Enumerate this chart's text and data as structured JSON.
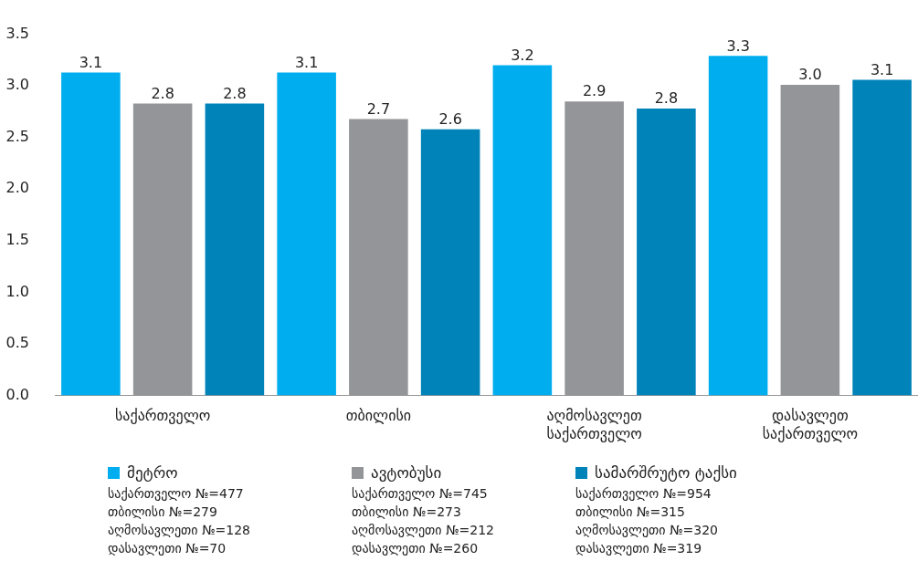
{
  "chart_data": {
    "type": "bar",
    "categories": [
      "საქართველო",
      "თბილისი",
      "აღმოსავლეთ საქართველო",
      "დასავლეთ საქართველო"
    ],
    "series": [
      {
        "name": "მეტრო",
        "color": "#00aeef",
        "values": [
          3.13,
          3.13,
          3.2,
          3.29
        ],
        "value_labels": [
          "3.1",
          "3.1",
          "3.2",
          "3.3"
        ]
      },
      {
        "name": "ავტობუსი",
        "color": "#939598",
        "values": [
          2.83,
          2.68,
          2.85,
          3.01
        ],
        "value_labels": [
          "2.8",
          "2.7",
          "2.9",
          "3.0"
        ]
      },
      {
        "name": "სამარშრუტო ტაქსი",
        "color": "#0083b9",
        "values": [
          2.83,
          2.58,
          2.78,
          3.06
        ],
        "value_labels": [
          "2.8",
          "2.6",
          "2.8",
          "3.1"
        ]
      }
    ],
    "ylim": [
      0,
      3.5
    ],
    "yticks": [
      {
        "value": 0,
        "label": "0.0"
      },
      {
        "value": 0.5,
        "label": "0.5"
      },
      {
        "value": 1,
        "label": "1.0"
      },
      {
        "value": 1.5,
        "label": "1.5"
      },
      {
        "value": 2,
        "label": "2.0"
      },
      {
        "value": 2.5,
        "label": "2.5"
      },
      {
        "value": 3,
        "label": "3.0"
      },
      {
        "value": 3.5,
        "label": "3.5"
      }
    ],
    "grid": false,
    "legend": "bottom",
    "annotations": [
      "საქართველო №=477",
      "თბილისი №=279",
      "აღმოსავლეთი №=128",
      "დასავლეთი №=70",
      "საქართველო №=745",
      "თბილისი №=273",
      "აღმოსავლეთი №=212",
      "დასავლეთი №=260",
      "საქართველო №=954",
      "თბილისი №=315",
      "აღმოსავლეთი №=320",
      "დასავლეთი №=319"
    ]
  }
}
